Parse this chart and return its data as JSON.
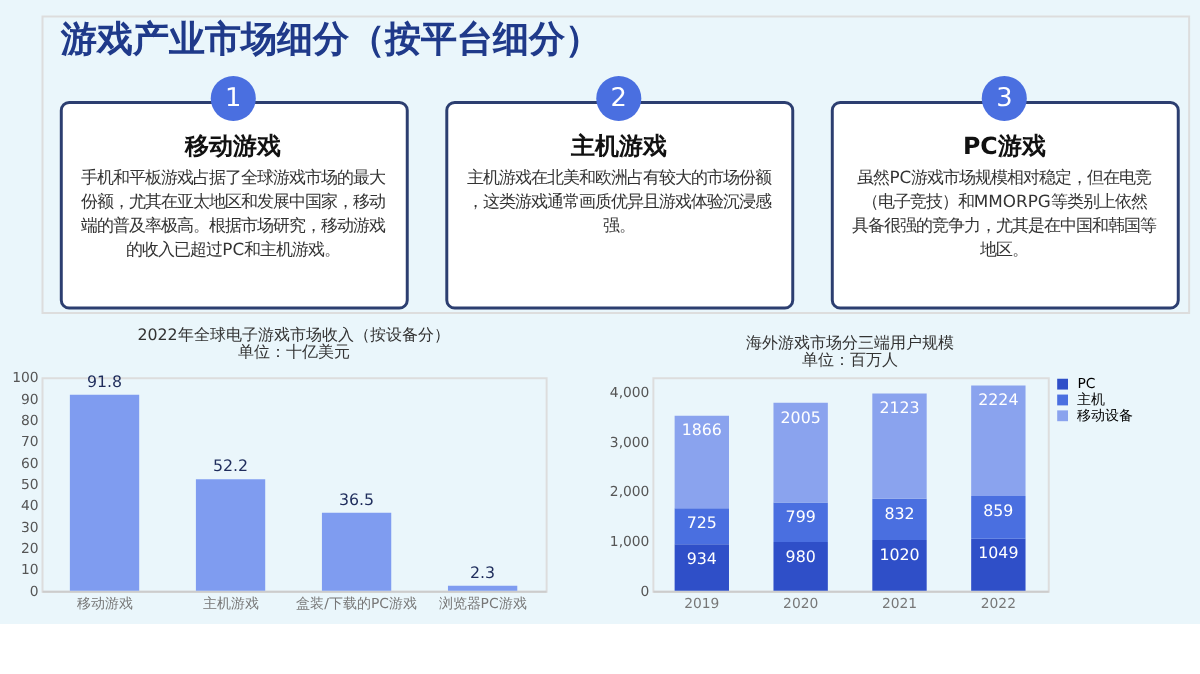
{
  "chart_data": [
    {
      "type": "other",
      "title": "游戏产业市场细分（按平台细分）",
      "annotations": [
        "1",
        "移动游戏",
        "手机和平板游戏占据了全球游戏市场的最大份额，尤其在亚太地区和发展中国家，移动端的普及率极高。根据市场研究，移动游戏的收入已超过PC和主机游戏。",
        "2",
        "主机游戏",
        "主机游戏在北美和欧洲占有较大的市场份额，这类游戏通常画质优异且游戏体验沉浸感强。",
        "3",
        "PC游戏",
        "虽然PC游戏市场规模相对稳定，但在电竞（电子竞技）和MMORPG等类别上依然具备很强的竞争力，尤其是在中国和韩国等地区。"
      ]
    },
    {
      "type": "bar",
      "title": "2022年全球电子游戏市场收入（按设备分）",
      "subtitle": "单位：十亿美元",
      "categories": [
        "移动游戏",
        "主机游戏",
        "盒装/下载的PC游戏",
        "浏览器PC游戏"
      ],
      "values": [
        91.8,
        52.2,
        36.5,
        2.3
      ],
      "color": "#7f9cf0",
      "ylim": [
        0,
        100
      ],
      "yticks": [
        0,
        10,
        20,
        30,
        40,
        50,
        60,
        70,
        80,
        90,
        100
      ],
      "data_labels": true,
      "grid": false
    },
    {
      "type": "bar",
      "title": "海外游戏市场分三端用户规模",
      "subtitle": "单位：百万人",
      "categories": [
        "2019",
        "2020",
        "2021",
        "2022"
      ],
      "stacked": true,
      "legend": "top right",
      "grid": false,
      "data_labels": true,
      "ylim": [
        0,
        4300
      ],
      "yticks": [
        0,
        {
          "value": 1000,
          "label": "1,000"
        },
        {
          "value": 2000,
          "label": "2,000"
        },
        {
          "value": 3000,
          "label": "3,000"
        },
        {
          "value": 4000,
          "label": "4,000"
        }
      ],
      "series": [
        {
          "name": "PC",
          "color": "#2f4fc8",
          "values": [
            934,
            980,
            1020,
            1049
          ]
        },
        {
          "name": "主机",
          "color": "#4a6fe0",
          "values": [
            725,
            799,
            832,
            859
          ]
        },
        {
          "name": "移动设备",
          "color": "#8aa3ee",
          "values": [
            1866,
            2005,
            2123,
            2224
          ]
        }
      ]
    }
  ]
}
